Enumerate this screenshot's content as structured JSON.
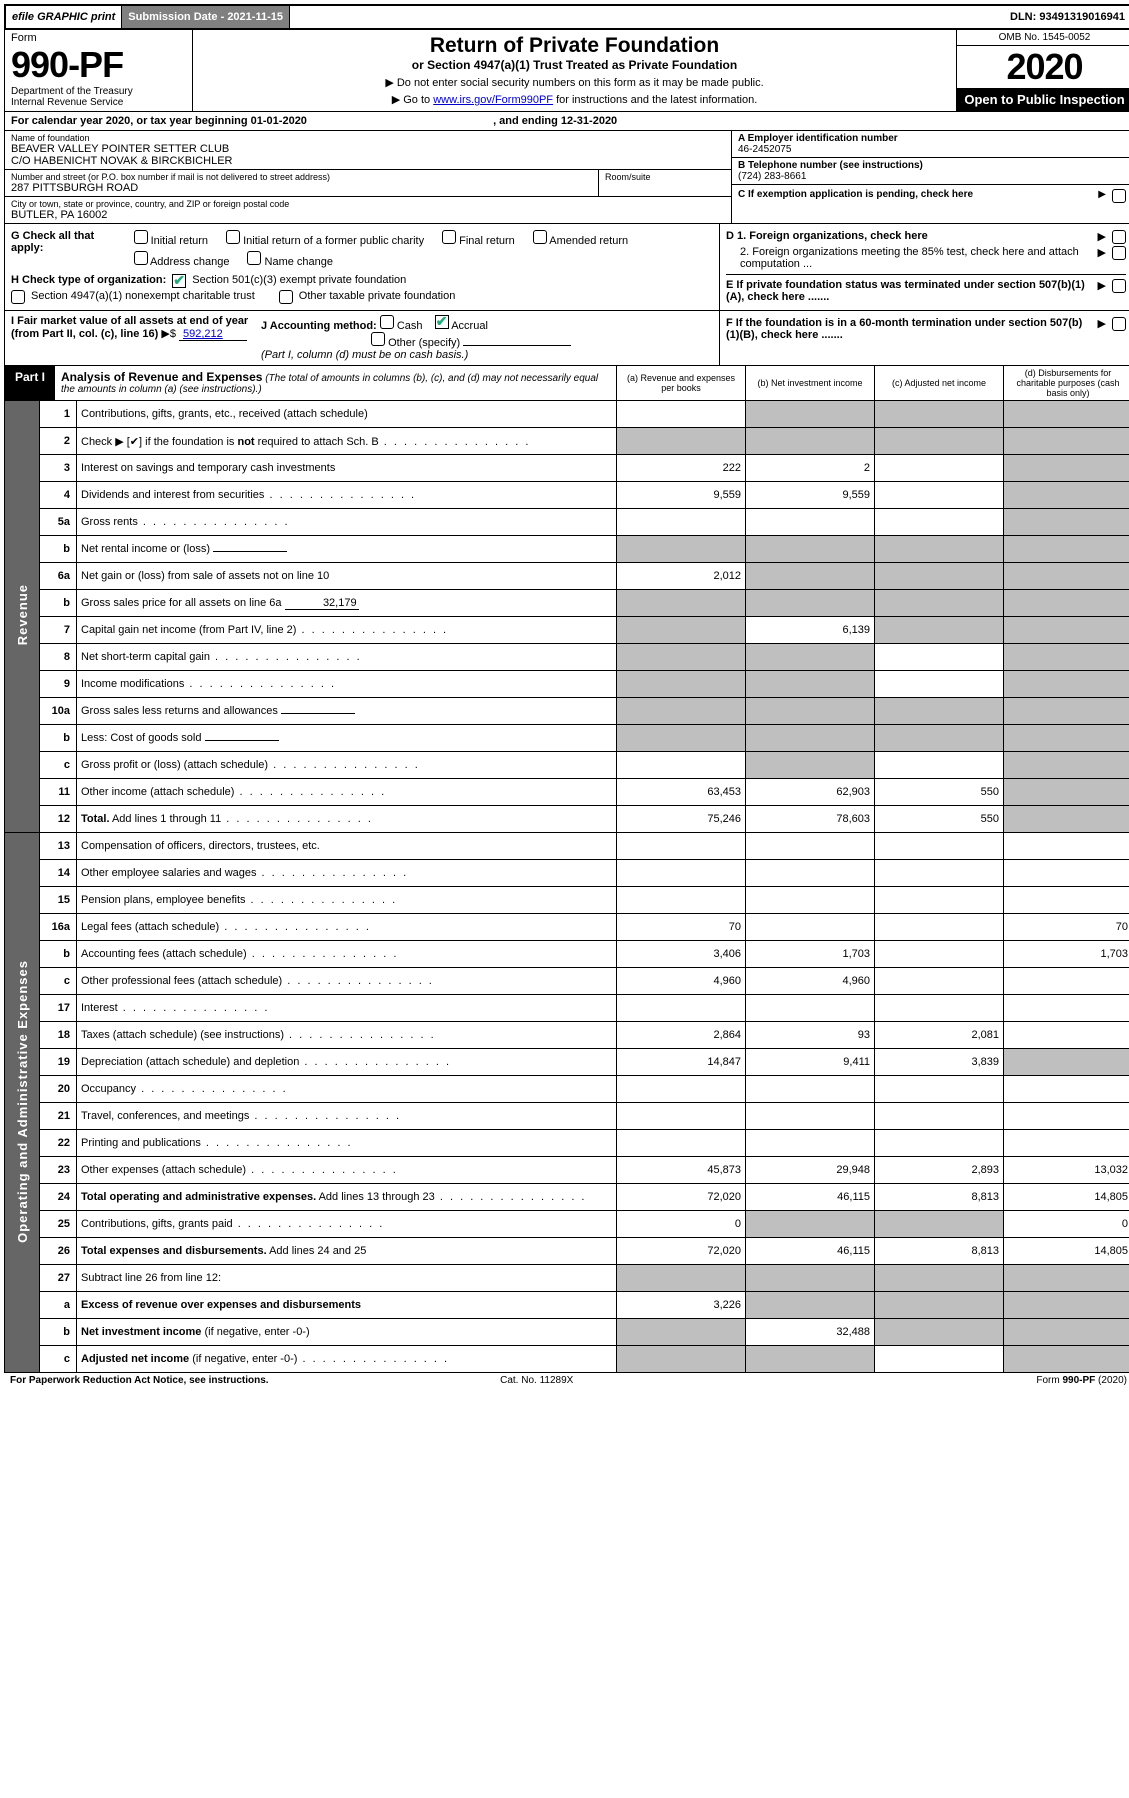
{
  "topbar": {
    "efile": "efile GRAPHIC print",
    "submission": "Submission Date - 2021-11-15",
    "dln": "DLN: 93491319016941"
  },
  "header": {
    "form_label": "Form",
    "form_no": "990-PF",
    "dept": "Department of the Treasury\nInternal Revenue Service",
    "title": "Return of Private Foundation",
    "subtitle": "or Section 4947(a)(1) Trust Treated as Private Foundation",
    "instr1": "▶ Do not enter social security numbers on this form as it may be made public.",
    "instr2_pre": "▶ Go to ",
    "instr2_link": "www.irs.gov/Form990PF",
    "instr2_post": " for instructions and the latest information.",
    "omb": "OMB No. 1545-0052",
    "year": "2020",
    "open": "Open to Public Inspection"
  },
  "cal": {
    "text_a": "For calendar year 2020, or tax year beginning ",
    "begin": "01-01-2020",
    "text_b": " , and ending ",
    "end": "12-31-2020"
  },
  "info": {
    "name_label": "Name of foundation",
    "name": "BEAVER VALLEY POINTER SETTER CLUB\nC/O HABENICHT NOVAK & BIRCKBICHLER",
    "addr_label": "Number and street (or P.O. box number if mail is not delivered to street address)",
    "addr": "287 PITTSBURGH ROAD",
    "room_label": "Room/suite",
    "city_label": "City or town, state or province, country, and ZIP or foreign postal code",
    "city": "BUTLER, PA  16002",
    "ein_label": "A Employer identification number",
    "ein": "46-2452075",
    "phone_label": "B Telephone number (see instructions)",
    "phone": "(724) 283-8661",
    "c_label": "C If exemption application is pending, check here"
  },
  "gh": {
    "g_label": "G Check all that apply:",
    "g_opts": [
      "Initial return",
      "Initial return of a former public charity",
      "Final return",
      "Amended return",
      "Address change",
      "Name change"
    ],
    "h_label": "H Check type of organization:",
    "h_opt1": "Section 501(c)(3) exempt private foundation",
    "h_opt2": "Section 4947(a)(1) nonexempt charitable trust",
    "h_opt3": "Other taxable private foundation",
    "d1": "D 1. Foreign organizations, check here",
    "d2": "2. Foreign organizations meeting the 85% test, check here and attach computation ...",
    "e": "E  If private foundation status was terminated under section 507(b)(1)(A), check here .......",
    "f": "F  If the foundation is in a 60-month termination under section 507(b)(1)(B), check here ......."
  },
  "ij": {
    "i_label": "I Fair market value of all assets at end of year (from Part II, col. (c), line 16)",
    "i_val": "592,212",
    "j_label": "J Accounting method:",
    "j_cash": "Cash",
    "j_accrual": "Accrual",
    "j_other": "Other (specify)",
    "j_note": "(Part I, column (d) must be on cash basis.)"
  },
  "part1": {
    "tab": "Part I",
    "title": "Analysis of Revenue and Expenses",
    "title_note": " (The total of amounts in columns (b), (c), and (d) may not necessarily equal the amounts in column (a) (see instructions).)",
    "col_a": "(a)  Revenue and expenses per books",
    "col_b": "(b)  Net investment income",
    "col_c": "(c)  Adjusted net income",
    "col_d": "(d)  Disbursements for charitable purposes (cash basis only)"
  },
  "side": {
    "rev": "Revenue",
    "exp": "Operating and Administrative Expenses"
  },
  "rows": [
    {
      "no": "1",
      "lbl": "Contributions, gifts, grants, etc., received (attach schedule)",
      "a": "",
      "b": "g",
      "c": "g",
      "d": "g"
    },
    {
      "no": "2",
      "lbl": "Check ▶ [✔] if the foundation is <b>not</b> required to attach Sch. B",
      "dots": true,
      "a": "g",
      "b": "g",
      "c": "g",
      "d": "g"
    },
    {
      "no": "3",
      "lbl": "Interest on savings and temporary cash investments",
      "a": "222",
      "b": "2",
      "c": "",
      "d": "g"
    },
    {
      "no": "4",
      "lbl": "Dividends and interest from securities",
      "dots": true,
      "a": "9,559",
      "b": "9,559",
      "c": "",
      "d": "g"
    },
    {
      "no": "5a",
      "lbl": "Gross rents",
      "dots": true,
      "a": "",
      "b": "",
      "c": "",
      "d": "g"
    },
    {
      "no": "b",
      "lbl": "Net rental income or (loss)",
      "inline": "",
      "a": "g",
      "b": "g",
      "c": "g",
      "d": "g"
    },
    {
      "no": "6a",
      "lbl": "Net gain or (loss) from sale of assets not on line 10",
      "a": "2,012",
      "b": "g",
      "c": "g",
      "d": "g"
    },
    {
      "no": "b",
      "lbl": "Gross sales price for all assets on line 6a",
      "inline": "32,179",
      "a": "g",
      "b": "g",
      "c": "g",
      "d": "g"
    },
    {
      "no": "7",
      "lbl": "Capital gain net income (from Part IV, line 2)",
      "dots": true,
      "a": "g",
      "b": "6,139",
      "c": "g",
      "d": "g"
    },
    {
      "no": "8",
      "lbl": "Net short-term capital gain",
      "dots": true,
      "a": "g",
      "b": "g",
      "c": "",
      "d": "g"
    },
    {
      "no": "9",
      "lbl": "Income modifications",
      "dots": true,
      "a": "g",
      "b": "g",
      "c": "",
      "d": "g"
    },
    {
      "no": "10a",
      "lbl": "Gross sales less returns and allowances",
      "inline": "",
      "a": "g",
      "b": "g",
      "c": "g",
      "d": "g"
    },
    {
      "no": "b",
      "lbl": "Less: Cost of goods sold",
      "dots": true,
      "inline": "",
      "a": "g",
      "b": "g",
      "c": "g",
      "d": "g"
    },
    {
      "no": "c",
      "lbl": "Gross profit or (loss) (attach schedule)",
      "dots": true,
      "a": "",
      "b": "g",
      "c": "",
      "d": "g"
    },
    {
      "no": "11",
      "lbl": "Other income (attach schedule)",
      "dots": true,
      "a": "63,453",
      "b": "62,903",
      "c": "550",
      "d": "g"
    },
    {
      "no": "12",
      "lbl": "<b>Total.</b> Add lines 1 through 11",
      "dots": true,
      "a": "75,246",
      "b": "78,603",
      "c": "550",
      "d": "g"
    }
  ],
  "exp_rows": [
    {
      "no": "13",
      "lbl": "Compensation of officers, directors, trustees, etc.",
      "a": "",
      "b": "",
      "c": "",
      "d": ""
    },
    {
      "no": "14",
      "lbl": "Other employee salaries and wages",
      "dots": true,
      "a": "",
      "b": "",
      "c": "",
      "d": ""
    },
    {
      "no": "15",
      "lbl": "Pension plans, employee benefits",
      "dots": true,
      "a": "",
      "b": "",
      "c": "",
      "d": ""
    },
    {
      "no": "16a",
      "lbl": "Legal fees (attach schedule)",
      "dots": true,
      "a": "70",
      "b": "",
      "c": "",
      "d": "70"
    },
    {
      "no": "b",
      "lbl": "Accounting fees (attach schedule)",
      "dots": true,
      "a": "3,406",
      "b": "1,703",
      "c": "",
      "d": "1,703"
    },
    {
      "no": "c",
      "lbl": "Other professional fees (attach schedule)",
      "dots": true,
      "a": "4,960",
      "b": "4,960",
      "c": "",
      "d": ""
    },
    {
      "no": "17",
      "lbl": "Interest",
      "dots": true,
      "a": "",
      "b": "",
      "c": "",
      "d": ""
    },
    {
      "no": "18",
      "lbl": "Taxes (attach schedule) (see instructions)",
      "dots": true,
      "a": "2,864",
      "b": "93",
      "c": "2,081",
      "d": ""
    },
    {
      "no": "19",
      "lbl": "Depreciation (attach schedule) and depletion",
      "dots": true,
      "a": "14,847",
      "b": "9,411",
      "c": "3,839",
      "d": "g"
    },
    {
      "no": "20",
      "lbl": "Occupancy",
      "dots": true,
      "a": "",
      "b": "",
      "c": "",
      "d": ""
    },
    {
      "no": "21",
      "lbl": "Travel, conferences, and meetings",
      "dots": true,
      "a": "",
      "b": "",
      "c": "",
      "d": ""
    },
    {
      "no": "22",
      "lbl": "Printing and publications",
      "dots": true,
      "a": "",
      "b": "",
      "c": "",
      "d": ""
    },
    {
      "no": "23",
      "lbl": "Other expenses (attach schedule)",
      "dots": true,
      "a": "45,873",
      "b": "29,948",
      "c": "2,893",
      "d": "13,032"
    },
    {
      "no": "24",
      "lbl": "<b>Total operating and administrative expenses.</b> Add lines 13 through 23",
      "dots": true,
      "a": "72,020",
      "b": "46,115",
      "c": "8,813",
      "d": "14,805"
    },
    {
      "no": "25",
      "lbl": "Contributions, gifts, grants paid",
      "dots": true,
      "a": "0",
      "b": "g",
      "c": "g",
      "d": "0"
    },
    {
      "no": "26",
      "lbl": "<b>Total expenses and disbursements.</b> Add lines 24 and 25",
      "a": "72,020",
      "b": "46,115",
      "c": "8,813",
      "d": "14,805"
    },
    {
      "no": "27",
      "lbl": "Subtract line 26 from line 12:",
      "a": "g",
      "b": "g",
      "c": "g",
      "d": "g"
    },
    {
      "no": "a",
      "lbl": "<b>Excess of revenue over expenses and disbursements</b>",
      "a": "3,226",
      "b": "g",
      "c": "g",
      "d": "g"
    },
    {
      "no": "b",
      "lbl": "<b>Net investment income</b> (if negative, enter -0-)",
      "a": "g",
      "b": "32,488",
      "c": "g",
      "d": "g"
    },
    {
      "no": "c",
      "lbl": "<b>Adjusted net income</b> (if negative, enter -0-)",
      "dots": true,
      "a": "g",
      "b": "g",
      "c": "",
      "d": "g"
    }
  ],
  "footer": {
    "left": "For Paperwork Reduction Act Notice, see instructions.",
    "mid": "Cat. No. 11289X",
    "right": "Form 990-PF (2020)"
  },
  "colors": {
    "grey": "#bfbfbf",
    "sidegrey": "#666666"
  }
}
